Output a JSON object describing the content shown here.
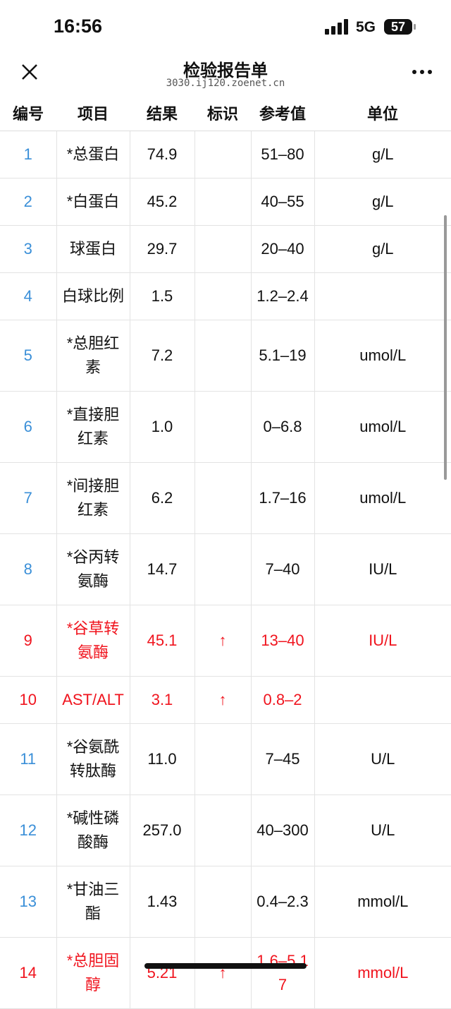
{
  "status_bar": {
    "time": "16:56",
    "network": "5G",
    "battery": "57"
  },
  "header": {
    "title": "检验报告单",
    "subtitle": "3030.ij120.zoenet.cn"
  },
  "table": {
    "columns": [
      "编号",
      "项目",
      "结果",
      "标识",
      "参考值",
      "单位"
    ],
    "rows": [
      {
        "cells": [
          "1",
          "*总蛋白",
          "74.9",
          null,
          "51–80",
          "g/L"
        ]
      },
      {
        "cells": [
          "2",
          "*白蛋白",
          "45.2",
          null,
          "40–55",
          "g/L"
        ]
      },
      {
        "cells": [
          "3",
          "球蛋白",
          "29.7",
          null,
          "20–40",
          "g/L"
        ]
      },
      {
        "cells": [
          "4",
          "白球比例",
          "1.5",
          null,
          "1.2–2.4",
          null
        ]
      },
      {
        "cells": [
          "5",
          "*总胆红素",
          "7.2",
          null,
          "5.1–19",
          "umol/L"
        ]
      },
      {
        "cells": [
          "6",
          "*直接胆红素",
          "1.0",
          null,
          "0–6.8",
          "umol/L"
        ]
      },
      {
        "cells": [
          "7",
          "*间接胆红素",
          "6.2",
          null,
          "1.7–16",
          "umol/L"
        ]
      },
      {
        "cells": [
          "8",
          "*谷丙转氨酶",
          "14.7",
          null,
          "7–40",
          "IU/L"
        ]
      },
      {
        "cells": [
          "9",
          "*谷草转氨酶",
          "45.1",
          "↑",
          "13–40",
          "IU/L"
        ],
        "color": "#f0141e"
      },
      {
        "cells": [
          "10",
          "AST/ALT",
          "3.1",
          "↑",
          "0.8–2",
          null
        ],
        "color": "#f0141e"
      },
      {
        "cells": [
          "11",
          "*谷氨酰转肽酶",
          "11.0",
          null,
          "7–45",
          "U/L"
        ]
      },
      {
        "cells": [
          "12",
          "*碱性磷酸酶",
          "257.0",
          null,
          "40–300",
          "U/L"
        ]
      },
      {
        "cells": [
          "13",
          "*甘油三酯",
          "1.43",
          null,
          "0.4–2.3",
          "mmol/L"
        ]
      },
      {
        "cells": [
          "14",
          "*总胆固醇",
          "5.21",
          "↑",
          "1.6–5.17",
          "mmol/L"
        ],
        "color": "#f0141e"
      }
    ]
  }
}
